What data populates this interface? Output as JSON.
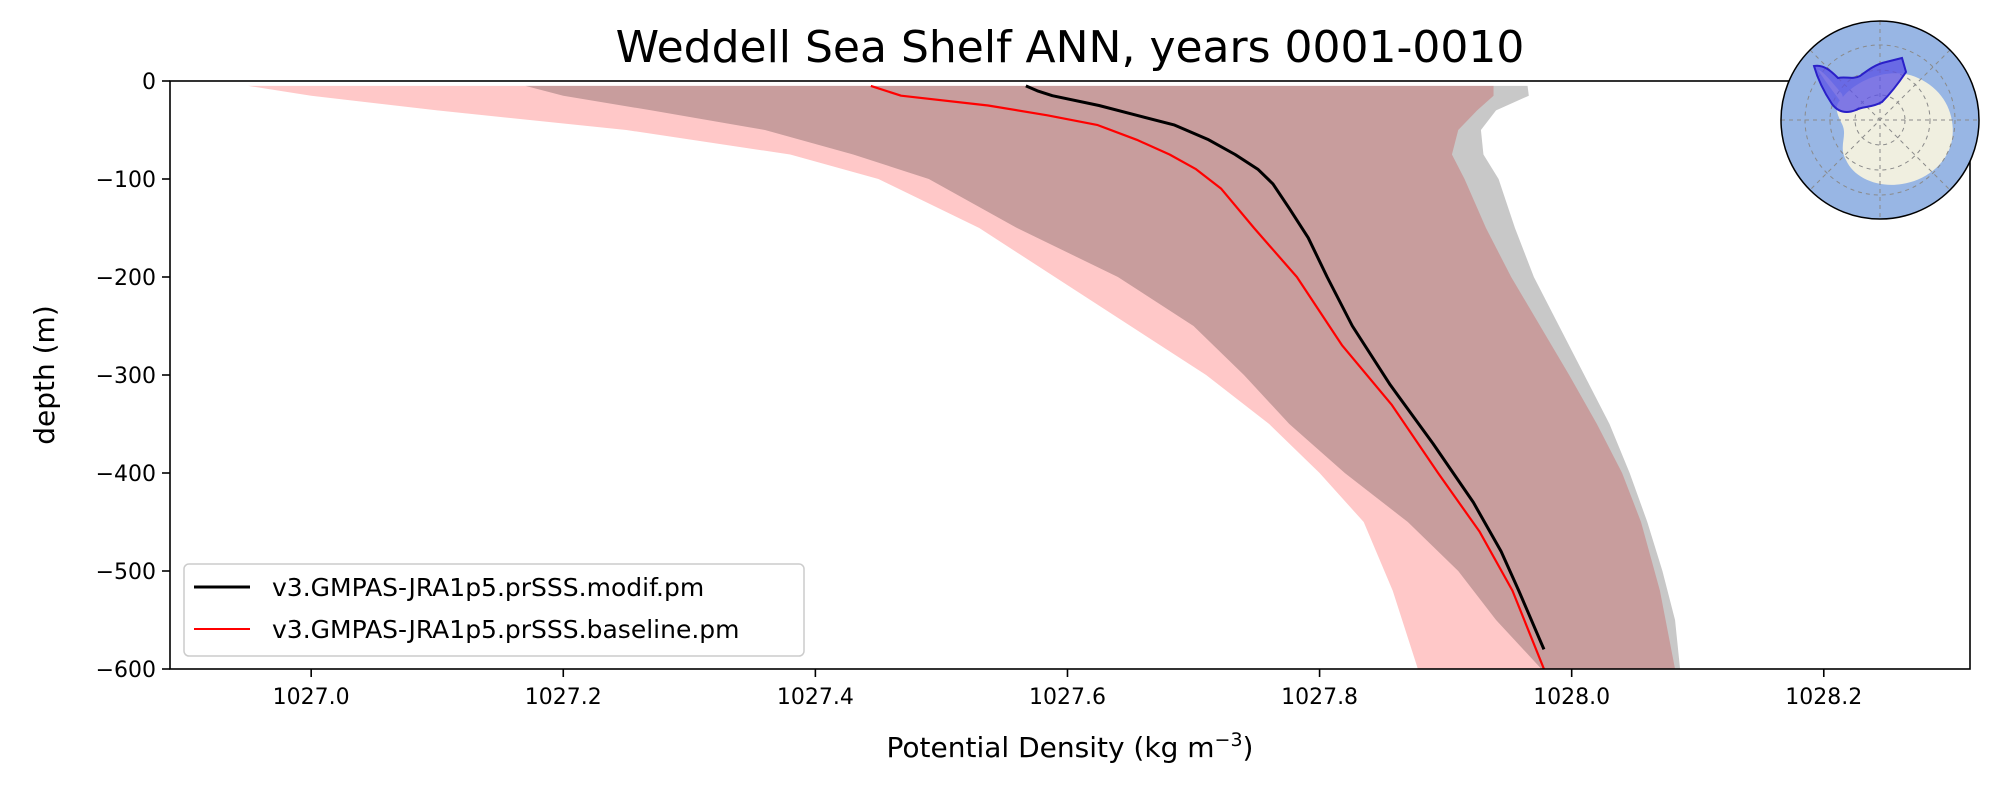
{
  "chart_data": {
    "type": "line",
    "title": "Weddell Sea Shelf ANN, years 0001-0010",
    "xlabel_main": "Potential Density (kg m",
    "xlabel_sup": "−3",
    "xlabel_close": ")",
    "ylabel": "depth (m)",
    "xlim": [
      1026.888,
      1028.316
    ],
    "ylim": [
      -600,
      0
    ],
    "xticks": [
      1027.0,
      1027.2,
      1027.4,
      1027.6,
      1027.8,
      1028.0,
      1028.2
    ],
    "xtick_labels": [
      "1027.0",
      "1027.2",
      "1027.4",
      "1027.6",
      "1027.8",
      "1028.0",
      "1028.2"
    ],
    "yticks": [
      0,
      -100,
      -200,
      -300,
      -400,
      -500,
      -600
    ],
    "ytick_labels": [
      "0",
      "−100",
      "−200",
      "−300",
      "−400",
      "−500",
      "−600"
    ],
    "grid": false,
    "legend_position": "lower-left",
    "colors": {
      "modif": "#000000",
      "baseline": "#ff0000",
      "modif_band": "#c8c8c8",
      "baseline_band": "#ffc8c8",
      "overlap_band": "#d6a3a3",
      "map_ocean": "#98b6e4",
      "map_land": "#f0efe0",
      "map_region": "#5a50e6"
    },
    "series": [
      {
        "name": "v3.GMPAS-JRA1p5.prSSS.modif.pm",
        "color": "#000000",
        "x": [
          1027.567,
          1027.576,
          1027.588,
          1027.625,
          1027.655,
          1027.685,
          1027.712,
          1027.733,
          1027.751,
          1027.763,
          1027.776,
          1027.791,
          1027.806,
          1027.826,
          1027.856,
          1027.89,
          1027.922,
          1027.944,
          1027.958,
          1027.978
        ],
        "depth": [
          -5,
          -10,
          -15,
          -25,
          -35,
          -45,
          -60,
          -75,
          -90,
          -105,
          -130,
          -160,
          -200,
          -250,
          -310,
          -370,
          -430,
          -480,
          -520,
          -580
        ]
      },
      {
        "name": "v3.GMPAS-JRA1p5.prSSS.baseline.pm",
        "color": "#ff0000",
        "x": [
          1027.444,
          1027.468,
          1027.537,
          1027.584,
          1027.624,
          1027.655,
          1027.681,
          1027.702,
          1027.722,
          1027.748,
          1027.782,
          1027.818,
          1027.857,
          1027.894,
          1027.927,
          1027.953,
          1027.978
        ],
        "depth": [
          -5,
          -15,
          -25,
          -35,
          -45,
          -60,
          -75,
          -90,
          -110,
          -150,
          -200,
          -270,
          -330,
          -400,
          -460,
          -520,
          -600
        ]
      }
    ],
    "bands": [
      {
        "name": "modif range",
        "color": "#c8c8c8",
        "lower_x": [
          1027.17,
          1027.2,
          1027.27,
          1027.36,
          1027.43,
          1027.49,
          1027.56,
          1027.64,
          1027.7,
          1027.74,
          1027.776,
          1027.82,
          1027.87,
          1027.91,
          1027.94,
          1027.976
        ],
        "upper_x": [
          1027.965,
          1027.966,
          1027.94,
          1027.928,
          1027.93,
          1027.942,
          1027.955,
          1027.97,
          1027.99,
          1028.01,
          1028.03,
          1028.046,
          1028.06,
          1028.072,
          1028.082,
          1028.086
        ],
        "depth": [
          -5,
          -15,
          -30,
          -50,
          -75,
          -100,
          -150,
          -200,
          -250,
          -300,
          -350,
          -400,
          -450,
          -500,
          -550,
          -600
        ]
      },
      {
        "name": "baseline range",
        "color": "#ffc8c8",
        "lower_x": [
          1026.95,
          1027.0,
          1027.1,
          1027.25,
          1027.38,
          1027.45,
          1027.53,
          1027.59,
          1027.65,
          1027.71,
          1027.76,
          1027.8,
          1027.835,
          1027.858,
          1027.878
        ],
        "upper_x": [
          1027.938,
          1027.938,
          1027.925,
          1027.91,
          1027.905,
          1027.915,
          1027.932,
          1027.952,
          1027.975,
          1027.998,
          1028.02,
          1028.04,
          1028.055,
          1028.07,
          1028.082
        ],
        "depth": [
          -5,
          -15,
          -30,
          -50,
          -75,
          -100,
          -150,
          -200,
          -250,
          -300,
          -350,
          -400,
          -450,
          -520,
          -600
        ]
      }
    ]
  }
}
